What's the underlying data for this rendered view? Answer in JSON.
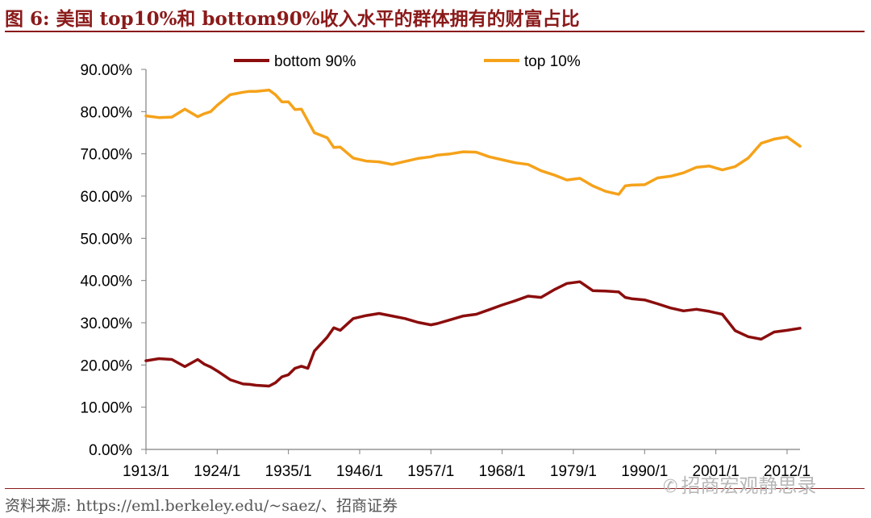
{
  "figure": {
    "title": "图 6:  美国 top10%和 bottom90%收入水平的群体拥有的财富占比",
    "source": "资料来源:  https://eml.berkeley.edu/~saez/、招商证券",
    "watermark": "招商宏观静思录",
    "watermark_icon": "wechat-icon"
  },
  "chart_data": {
    "type": "line",
    "title": "",
    "xlabel": "",
    "ylabel": "",
    "ylim": [
      0,
      0.9
    ],
    "xlim": [
      1913,
      2014
    ],
    "grid": false,
    "legend_placement": "top",
    "y_ticks": [
      0,
      0.1,
      0.2,
      0.3,
      0.4,
      0.5,
      0.6,
      0.7,
      0.8,
      0.9
    ],
    "y_tick_labels": [
      "0.00%",
      "10.00%",
      "20.00%",
      "30.00%",
      "40.00%",
      "50.00%",
      "60.00%",
      "70.00%",
      "80.00%",
      "90.00%"
    ],
    "x_ticks": [
      1913,
      1924,
      1935,
      1946,
      1957,
      1968,
      1979,
      1990,
      2001,
      2012
    ],
    "x_tick_labels": [
      "1913/1",
      "1924/1",
      "1935/1",
      "1946/1",
      "1957/1",
      "1968/1",
      "1979/1",
      "1990/1",
      "2001/1",
      "2012/1"
    ],
    "x": [
      1913,
      1915,
      1917,
      1919,
      1921,
      1922,
      1923,
      1924,
      1926,
      1928,
      1929,
      1930,
      1932,
      1933,
      1934,
      1935,
      1936,
      1937,
      1938,
      1939,
      1941,
      1942,
      1943,
      1945,
      1947,
      1949,
      1951,
      1953,
      1955,
      1957,
      1958,
      1960,
      1962,
      1964,
      1966,
      1968,
      1970,
      1972,
      1974,
      1976,
      1978,
      1980,
      1982,
      1984,
      1986,
      1987,
      1988,
      1990,
      1992,
      1994,
      1996,
      1998,
      2000,
      2002,
      2004,
      2006,
      2008,
      2010,
      2012,
      2014
    ],
    "series": [
      {
        "name": "bottom 90%",
        "color": "#8b0d0d",
        "values": [
          0.21,
          0.215,
          0.213,
          0.196,
          0.213,
          0.202,
          0.195,
          0.186,
          0.165,
          0.155,
          0.154,
          0.152,
          0.15,
          0.158,
          0.172,
          0.177,
          0.192,
          0.197,
          0.192,
          0.233,
          0.266,
          0.288,
          0.282,
          0.31,
          0.317,
          0.322,
          0.316,
          0.31,
          0.301,
          0.295,
          0.298,
          0.307,
          0.316,
          0.32,
          0.331,
          0.342,
          0.352,
          0.363,
          0.36,
          0.378,
          0.393,
          0.397,
          0.376,
          0.375,
          0.373,
          0.36,
          0.357,
          0.354,
          0.345,
          0.335,
          0.328,
          0.332,
          0.327,
          0.32,
          0.281,
          0.267,
          0.261,
          0.278,
          0.282,
          0.287
        ]
      },
      {
        "name": "top 10%",
        "color": "#f5a21a",
        "values": [
          0.79,
          0.786,
          0.787,
          0.806,
          0.788,
          0.795,
          0.8,
          0.815,
          0.84,
          0.846,
          0.848,
          0.848,
          0.851,
          0.84,
          0.823,
          0.823,
          0.805,
          0.806,
          0.778,
          0.75,
          0.738,
          0.715,
          0.716,
          0.69,
          0.683,
          0.681,
          0.675,
          0.682,
          0.689,
          0.693,
          0.697,
          0.7,
          0.705,
          0.704,
          0.693,
          0.686,
          0.679,
          0.675,
          0.66,
          0.65,
          0.638,
          0.642,
          0.624,
          0.611,
          0.604,
          0.624,
          0.626,
          0.627,
          0.643,
          0.647,
          0.655,
          0.668,
          0.671,
          0.662,
          0.67,
          0.69,
          0.725,
          0.735,
          0.74,
          0.718
        ]
      }
    ]
  }
}
